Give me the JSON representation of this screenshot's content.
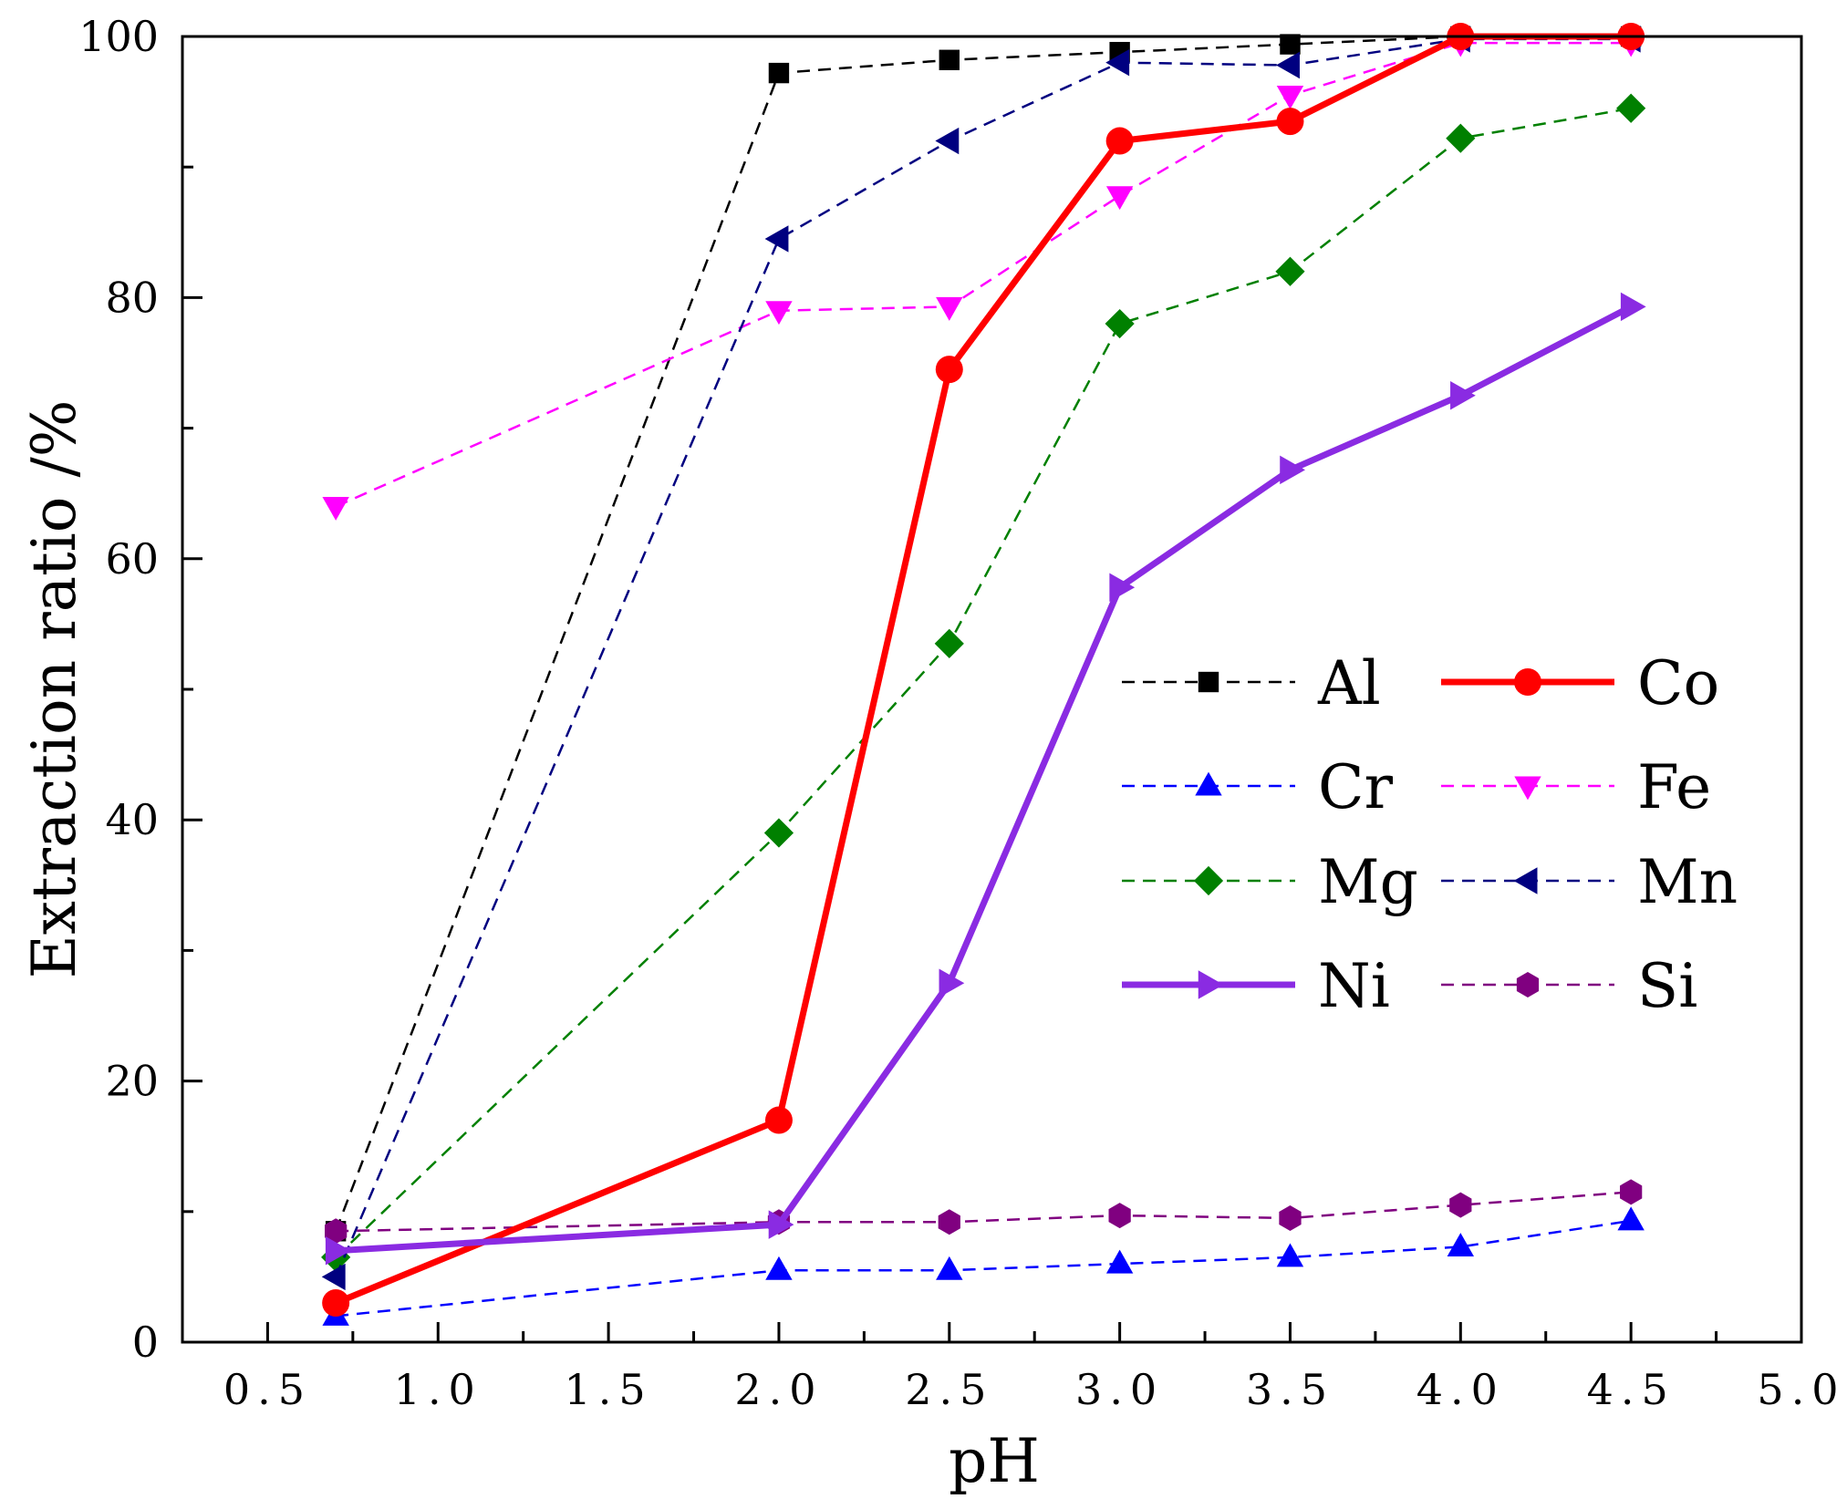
{
  "chart_data": {
    "type": "line",
    "xlabel": "pH",
    "ylabel": "Extraction ratio /%",
    "xlim": [
      0.25,
      5.0
    ],
    "ylim": [
      0,
      100
    ],
    "x_ticks": [
      0.5,
      1.0,
      1.5,
      2.0,
      2.5,
      3.0,
      3.5,
      4.0,
      4.5,
      5.0
    ],
    "x_tick_labels": [
      "0.5",
      "1.0",
      "1.5",
      "2.0",
      "2.5",
      "3.0",
      "3.5",
      "4.0",
      "4.5",
      "5.0"
    ],
    "y_ticks": [
      0,
      20,
      40,
      60,
      80,
      100
    ],
    "y_tick_labels": [
      "0",
      "20",
      "40",
      "60",
      "80",
      "100"
    ],
    "grid": false,
    "legend_position": "center-right",
    "x": [
      0.7,
      2.0,
      2.5,
      3.0,
      3.5,
      4.0,
      4.5
    ],
    "series": [
      {
        "name": "Al",
        "values": [
          8.5,
          97.2,
          98.2,
          98.8,
          99.4,
          100.0,
          100.0
        ],
        "color": "#000000",
        "marker": "square",
        "line": "dashed"
      },
      {
        "name": "Co",
        "values": [
          3.0,
          17.0,
          74.5,
          92.0,
          93.5,
          100.0,
          100.0
        ],
        "color": "#ff0000",
        "marker": "circle",
        "line": "solid"
      },
      {
        "name": "Cr",
        "values": [
          2.0,
          5.5,
          5.5,
          6.0,
          6.5,
          7.3,
          9.3
        ],
        "color": "#0000ff",
        "marker": "triangle-up",
        "line": "dashed"
      },
      {
        "name": "Fe",
        "values": [
          64.0,
          79.0,
          79.3,
          87.8,
          95.5,
          99.5,
          99.5
        ],
        "color": "#ff00ff",
        "marker": "triangle-down",
        "line": "dashed"
      },
      {
        "name": "Mg",
        "values": [
          6.5,
          39.0,
          53.5,
          78.0,
          82.0,
          92.2,
          94.5
        ],
        "color": "#008000",
        "marker": "diamond",
        "line": "dashed"
      },
      {
        "name": "Mn",
        "values": [
          5.0,
          84.5,
          92.0,
          98.0,
          97.8,
          99.8,
          99.8
        ],
        "color": "#000080",
        "marker": "triangle-left",
        "line": "dashed"
      },
      {
        "name": "Ni",
        "values": [
          7.0,
          9.0,
          27.5,
          57.8,
          66.8,
          72.5,
          79.3
        ],
        "color": "#8a2be2",
        "marker": "triangle-right",
        "line": "solid"
      },
      {
        "name": "Si",
        "values": [
          8.5,
          9.2,
          9.2,
          9.7,
          9.5,
          10.5,
          11.5
        ],
        "color": "#800080",
        "marker": "hexagon",
        "line": "dashed"
      }
    ]
  }
}
